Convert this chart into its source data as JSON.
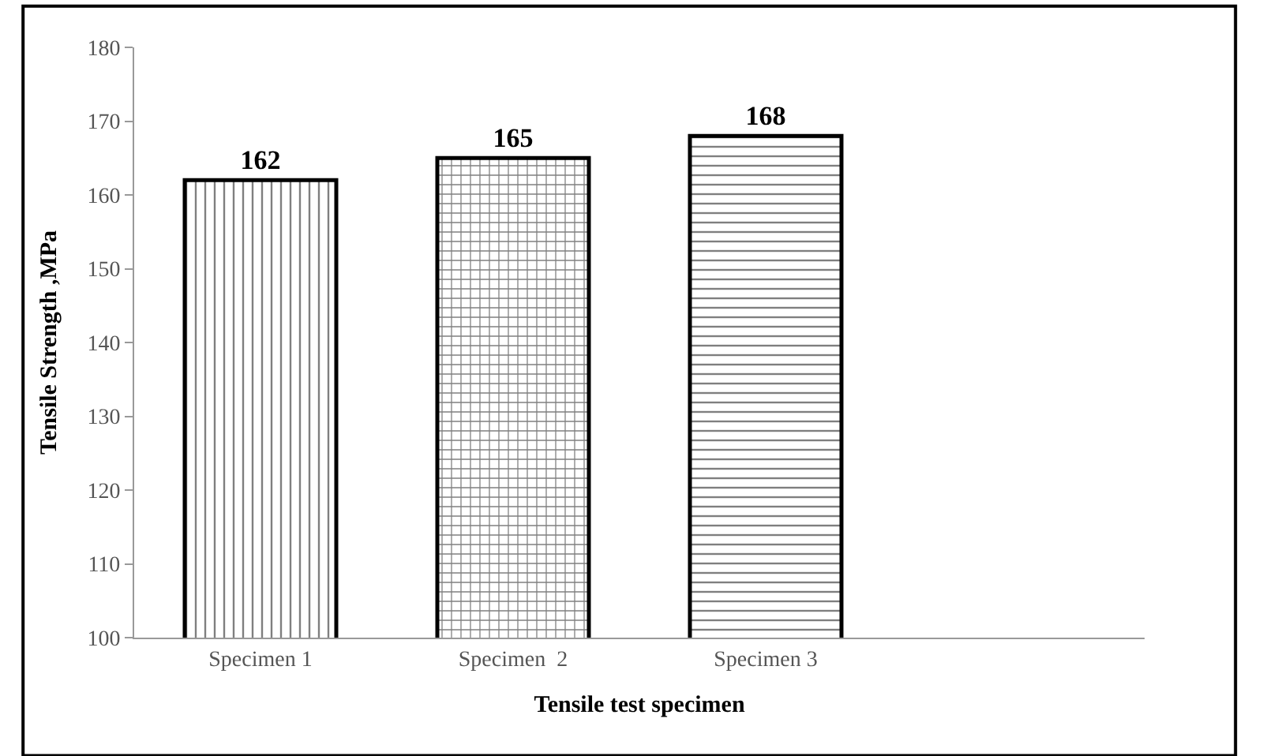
{
  "chart_data": {
    "type": "bar",
    "xlabel": "Tensile test specimen",
    "ylabel": "Tensile Strength ,MPa",
    "categories": [
      "Specimen 1",
      "Specimen  2",
      "Specimen 3",
      null
    ],
    "values": [
      162,
      165,
      168,
      null
    ],
    "color": "#000000",
    "ylim": [
      100,
      180
    ],
    "yticks": [
      100,
      110,
      120,
      130,
      140,
      150,
      160,
      170,
      180
    ],
    "data_labels": true
  }
}
